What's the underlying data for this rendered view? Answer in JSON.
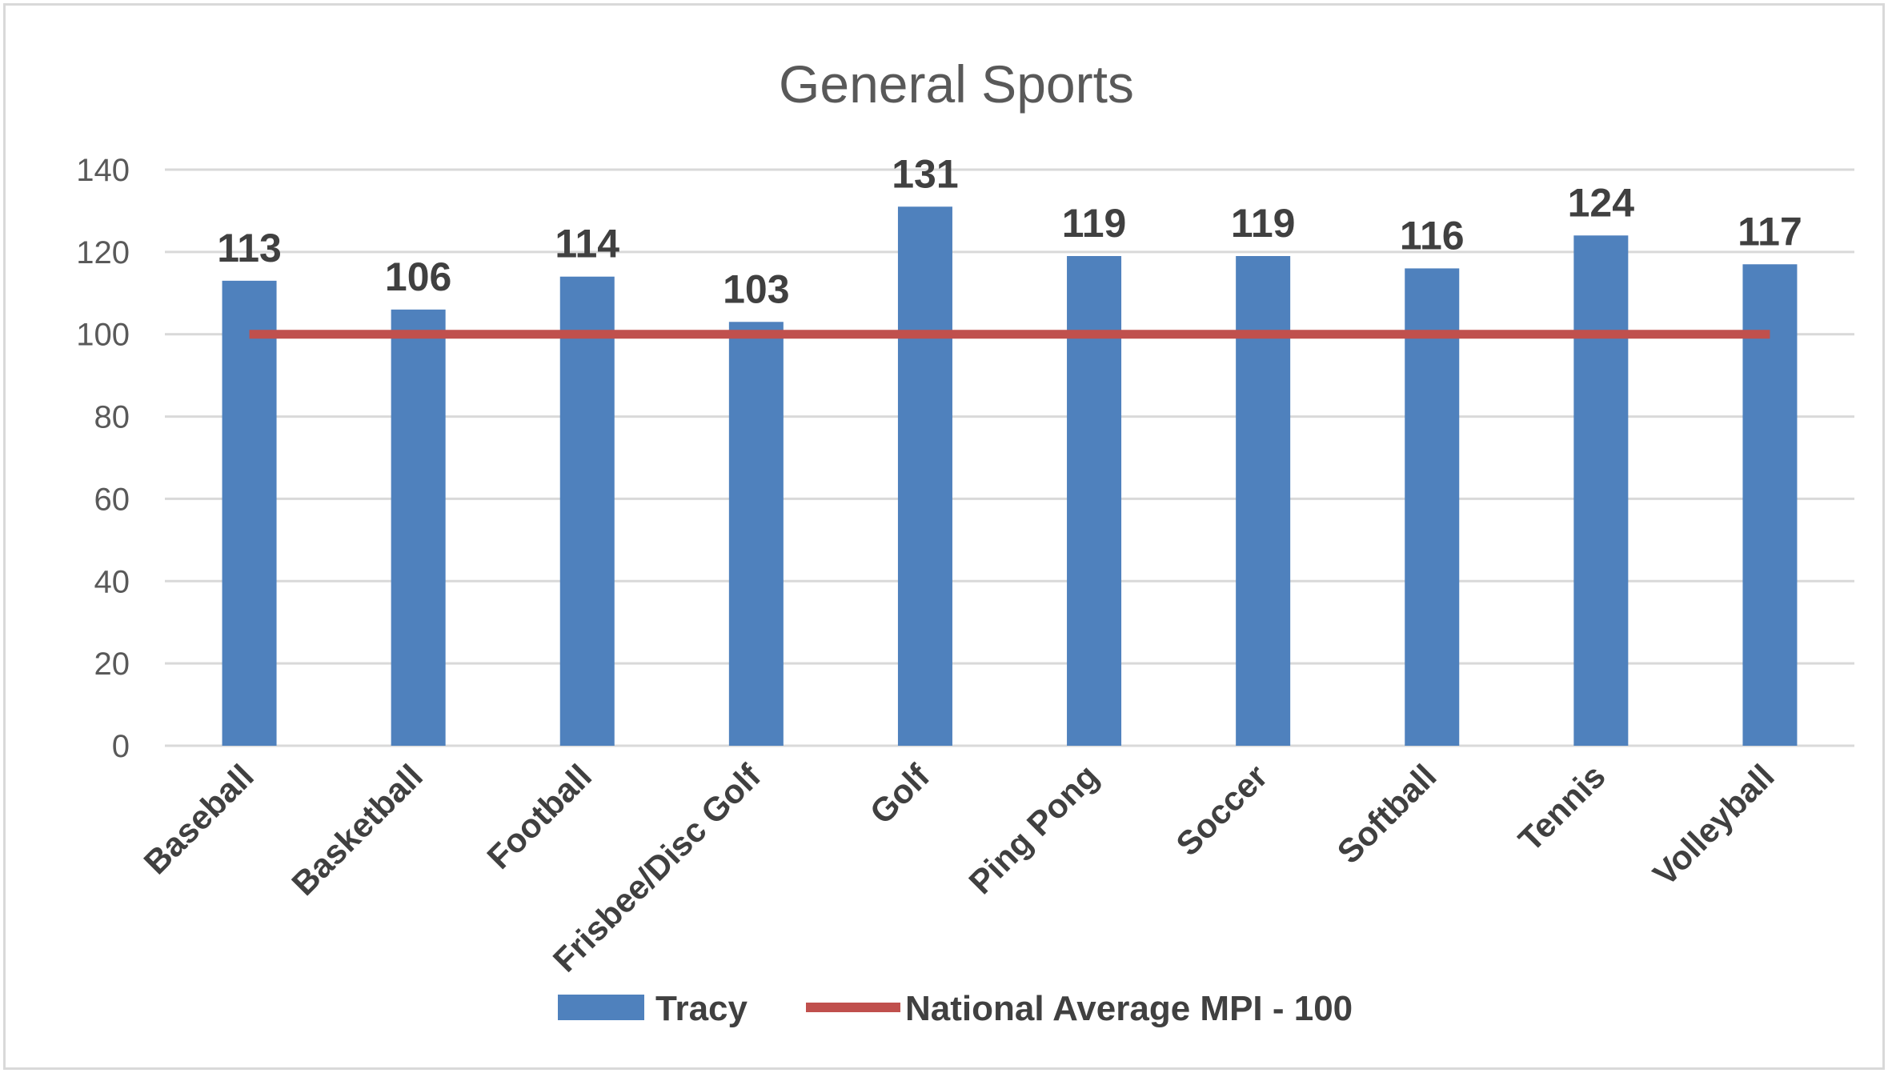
{
  "chart_data": {
    "type": "bar",
    "title": "General Sports",
    "xlabel": "",
    "ylabel": "",
    "ylim": [
      0,
      140
    ],
    "yticks": [
      "0",
      "20",
      "40",
      "60",
      "80",
      "100",
      "120",
      "140"
    ],
    "categories": [
      "Baseball",
      "Basketball",
      "Football",
      "Frisbee/Disc Golf",
      "Golf",
      "Ping Pong",
      "Soccer",
      "Softball",
      "Tennis",
      "Volleyball"
    ],
    "series": [
      {
        "name": "Tracy",
        "type": "bar",
        "color": "#4f81bd",
        "values": [
          113,
          106,
          114,
          103,
          131,
          119,
          119,
          116,
          124,
          117
        ]
      },
      {
        "name": "National Average MPI - 100",
        "type": "line",
        "color": "#c0504d",
        "values": [
          100,
          100,
          100,
          100,
          100,
          100,
          100,
          100,
          100,
          100
        ]
      }
    ],
    "data_labels": [
      "113",
      "106",
      "114",
      "103",
      "131",
      "119",
      "119",
      "116",
      "124",
      "117"
    ],
    "grid": true,
    "legend_position": "bottom"
  }
}
